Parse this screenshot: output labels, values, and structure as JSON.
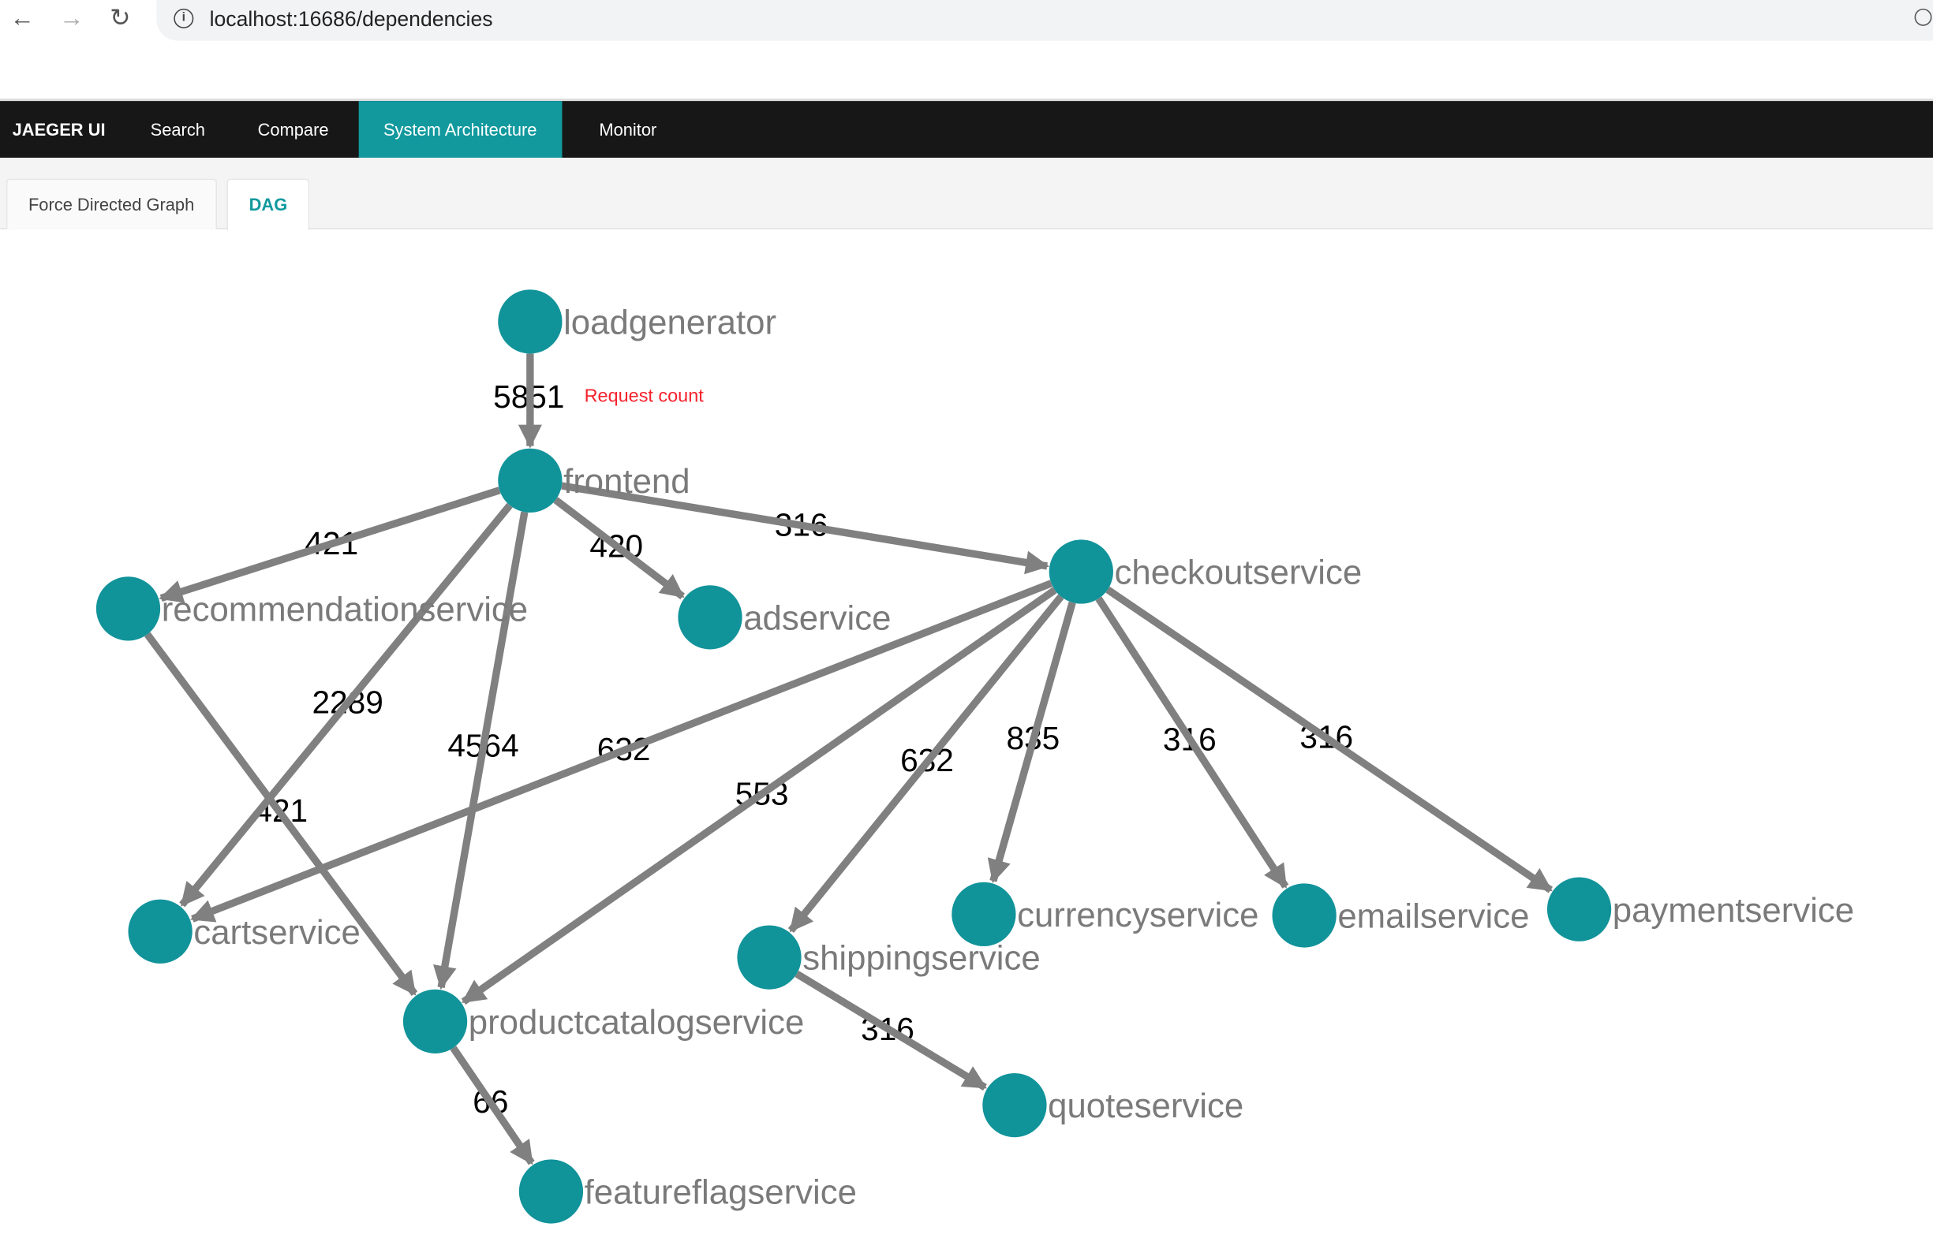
{
  "browser": {
    "url": "localhost:16686/dependencies"
  },
  "nav": {
    "brand": "JAEGER UI",
    "items": [
      {
        "label": "Search",
        "active": false
      },
      {
        "label": "Compare",
        "active": false
      },
      {
        "label": "System Architecture",
        "active": true
      },
      {
        "label": "Monitor",
        "active": false
      }
    ],
    "active_color": "#11999e"
  },
  "tabs": [
    {
      "label": "Force Directed Graph",
      "active": false
    },
    {
      "label": "DAG",
      "active": true
    }
  ],
  "annotation": "Request count",
  "graph": {
    "node_color": "#11939a",
    "edge_color": "#808080",
    "nodes": [
      "loadgenerator",
      "frontend",
      "recommendationservice",
      "adservice",
      "checkoutservice",
      "cartservice",
      "productcatalogservice",
      "shippingservice",
      "currencyservice",
      "emailservice",
      "paymentservice",
      "quoteservice",
      "featureflagservice"
    ],
    "edges": [
      {
        "from": "loadgenerator",
        "to": "frontend",
        "count": "5851"
      },
      {
        "from": "frontend",
        "to": "recommendationservice",
        "count": "421"
      },
      {
        "from": "frontend",
        "to": "adservice",
        "count": "420"
      },
      {
        "from": "frontend",
        "to": "checkoutservice",
        "count": "316"
      },
      {
        "from": "frontend",
        "to": "cartservice",
        "count": "2289"
      },
      {
        "from": "frontend",
        "to": "productcatalogservice",
        "count": "4564"
      },
      {
        "from": "recommendationservice",
        "to": "productcatalogservice",
        "count": "421"
      },
      {
        "from": "checkoutservice",
        "to": "cartservice",
        "count": "632"
      },
      {
        "from": "checkoutservice",
        "to": "productcatalogservice",
        "count": "553"
      },
      {
        "from": "checkoutservice",
        "to": "shippingservice",
        "count": "632"
      },
      {
        "from": "checkoutservice",
        "to": "currencyservice",
        "count": "835"
      },
      {
        "from": "checkoutservice",
        "to": "emailservice",
        "count": "316"
      },
      {
        "from": "checkoutservice",
        "to": "paymentservice",
        "count": "316"
      },
      {
        "from": "shippingservice",
        "to": "quoteservice",
        "count": "316"
      },
      {
        "from": "productcatalogservice",
        "to": "featureflagservice",
        "count": "66"
      }
    ]
  }
}
